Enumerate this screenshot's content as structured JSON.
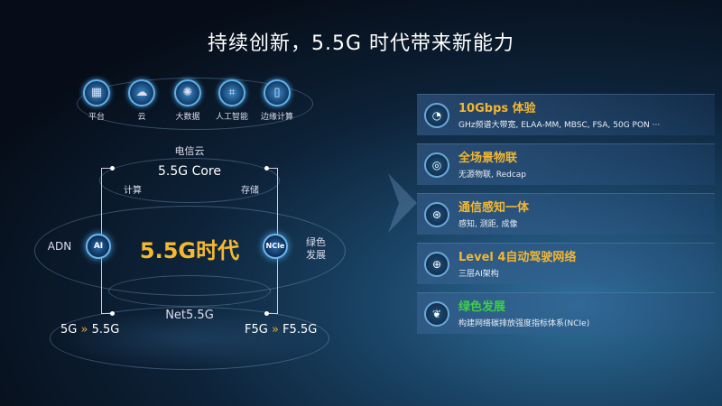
{
  "title": "持续创新，5.5G 时代带来新能力",
  "top_icons": [
    {
      "icon": "platform-icon",
      "label": "平台"
    },
    {
      "icon": "cloud-icon",
      "label": "云"
    },
    {
      "icon": "big-data-icon",
      "label": "大数据"
    },
    {
      "icon": "ai-chip-icon",
      "label": "人工智能"
    },
    {
      "icon": "edge-computing-icon",
      "label": "边缘计算"
    }
  ],
  "diagram": {
    "cloud": "电信云",
    "core": "5.5G Core",
    "compute": "计算",
    "storage": "存储",
    "center": "5.5G时代",
    "left_label": "ADN",
    "ai_node": "AI",
    "right_node": "NCIe",
    "right_label_1": "绿色",
    "right_label_2": "发展",
    "net": "Net5.5G",
    "left_from": "5G",
    "left_to": "5.5G",
    "right_from": "F5G",
    "right_to": "F5.5G"
  },
  "features": [
    {
      "icon": "speed-icon",
      "title": "10Gbps 体验",
      "desc": "GHz频谱大带宽, ELAA-MM, MBSC, FSA, 50G PON ···",
      "color": "#f2b632"
    },
    {
      "icon": "iot-icon",
      "title": "全场景物联",
      "desc": "无源物联, Redcap",
      "color": "#f2b632"
    },
    {
      "icon": "sensing-icon",
      "title": "通信感知一体",
      "desc": "感知, 测距, 成像",
      "color": "#f2b632"
    },
    {
      "icon": "network-globe-icon",
      "title": "Level 4自动驾驶网络",
      "desc": "三层AI架构",
      "color": "#f2b632"
    },
    {
      "icon": "leaf-icon",
      "title": "绿色发展",
      "desc": "构建网络碳排放强度指标体系(NCIe)",
      "color": "#3ccf4a"
    }
  ]
}
